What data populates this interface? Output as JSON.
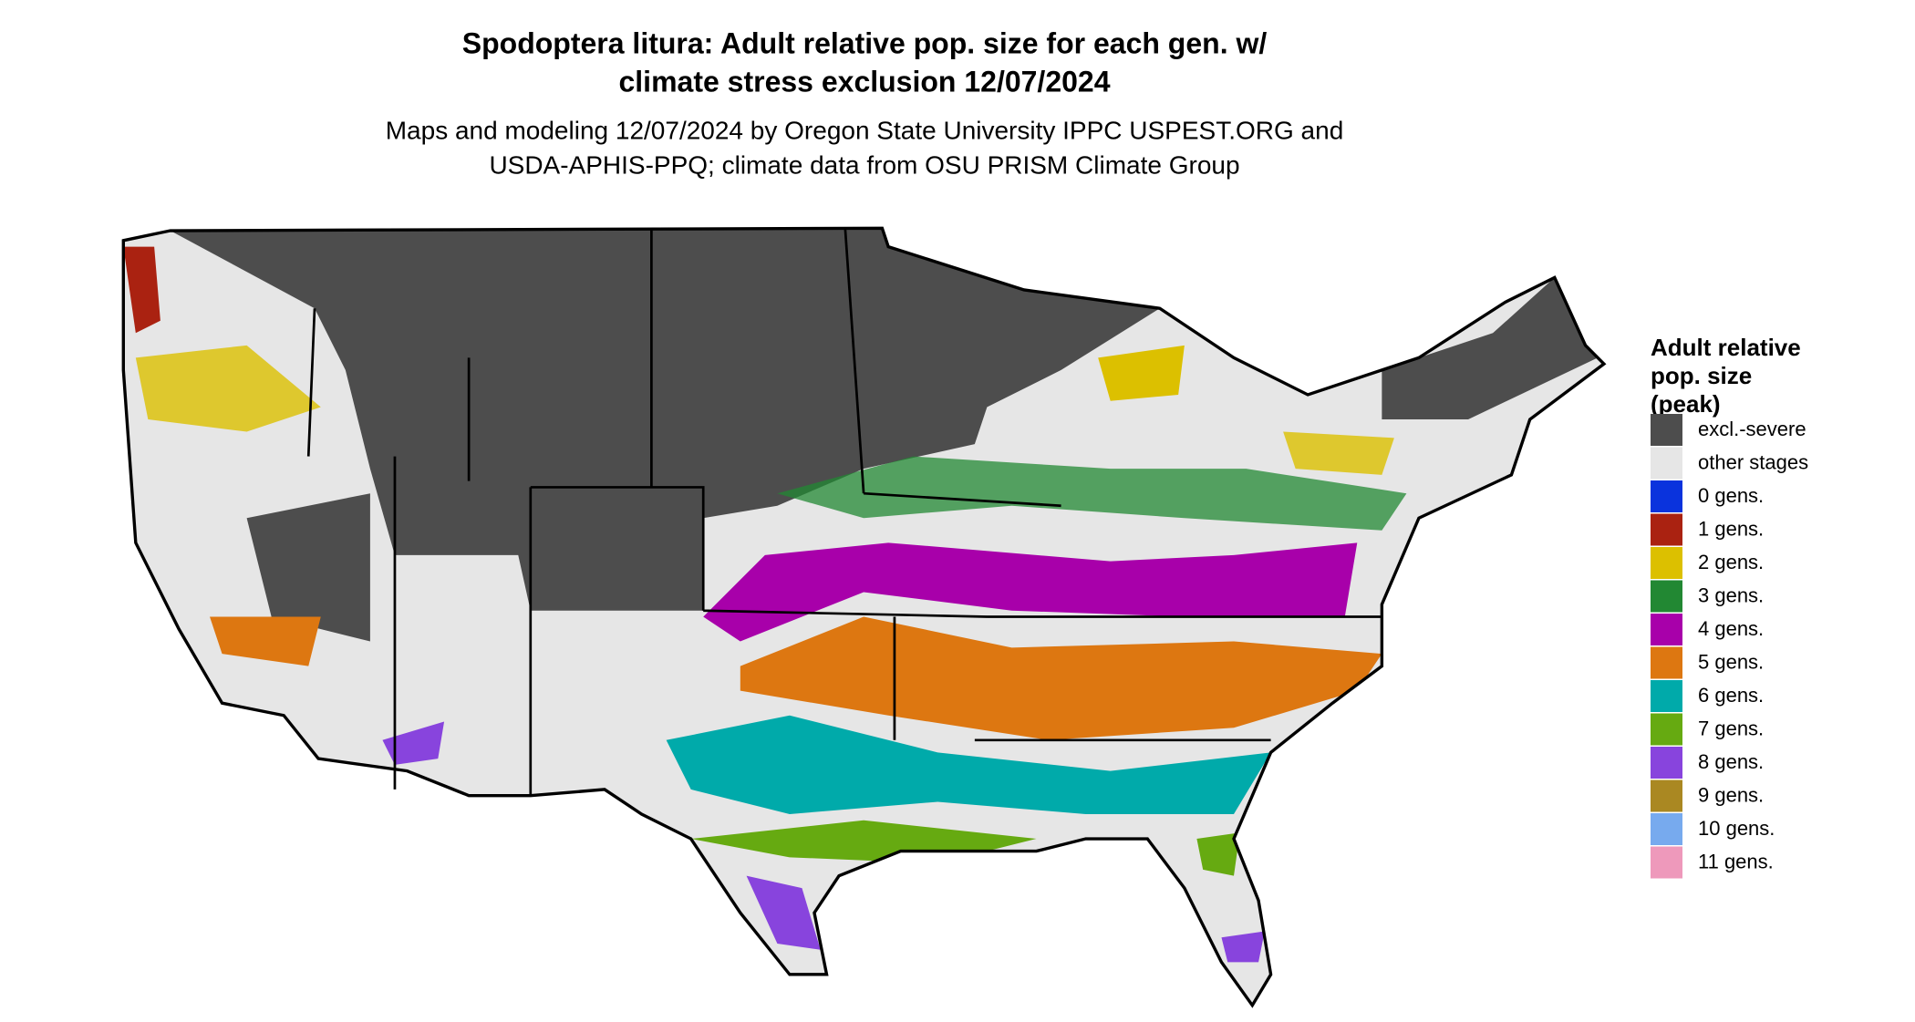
{
  "title": [
    "Spodoptera litura: Adult relative pop. size for each gen. w/",
    "climate stress exclusion 12/07/2024"
  ],
  "subtitle": [
    "Maps and modeling 12/07/2024 by Oregon State University IPPC USPEST.ORG and",
    "USDA-APHIS-PPQ; climate data from OSU PRISM Climate Group"
  ],
  "legend": {
    "title": [
      "Adult relative",
      "pop. size",
      "(peak)"
    ],
    "items": [
      {
        "label": "excl.-severe",
        "color": "#4d4d4d"
      },
      {
        "label": "other stages",
        "color": "#e6e6e6"
      },
      {
        "label": "0 gens.",
        "color": "#0a33dd"
      },
      {
        "label": "1 gens.",
        "color": "#aa2211"
      },
      {
        "label": "2 gens.",
        "color": "#dcc000"
      },
      {
        "label": "3 gens.",
        "color": "#228833"
      },
      {
        "label": "4 gens.",
        "color": "#a800aa"
      },
      {
        "label": "5 gens.",
        "color": "#dd7711"
      },
      {
        "label": "6 gens.",
        "color": "#00aaaa"
      },
      {
        "label": "7 gens.",
        "color": "#66aa11"
      },
      {
        "label": "8 gens.",
        "color": "#8844dd"
      },
      {
        "label": "9 gens.",
        "color": "#aa8822"
      },
      {
        "label": "10 gens.",
        "color": "#77aaee"
      },
      {
        "label": "11 gens.",
        "color": "#ee99bb"
      }
    ]
  }
}
